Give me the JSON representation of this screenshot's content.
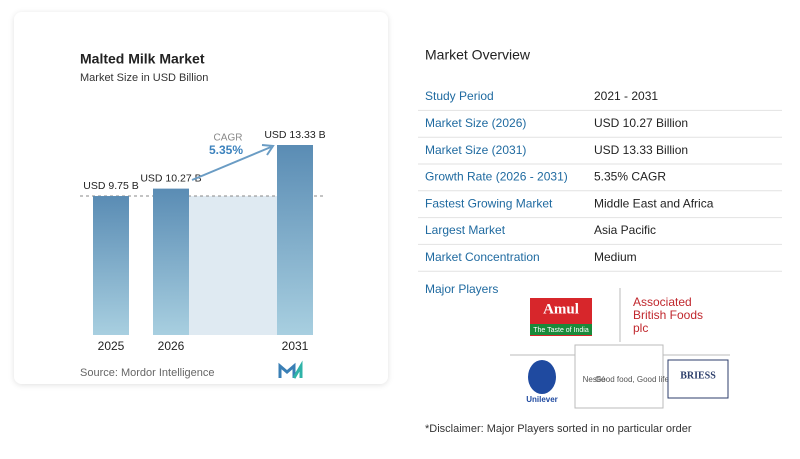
{
  "chart_data": {
    "type": "bar",
    "title": "Malted Milk Market",
    "subtitle": "Market Size in USD Billion",
    "categories": [
      "2025",
      "2026",
      "2031"
    ],
    "values": [
      9.75,
      10.27,
      13.33
    ],
    "value_labels": [
      "USD 9.75 B",
      "USD 10.27 B",
      "USD 13.33 B"
    ],
    "annotation": {
      "label": "CAGR",
      "value": "5.35%"
    },
    "source": "Source: Mordor Intelligence",
    "color": "#5b8fb7"
  },
  "overview": {
    "title": "Market Overview",
    "rows": [
      [
        "Study Period",
        "2021 - 2031"
      ],
      [
        "Market Size (2026)",
        "USD 10.27 Billion"
      ],
      [
        "Market Size (2031)",
        "USD 13.33 Billion"
      ],
      [
        "Growth Rate (2026 - 2031)",
        "5.35% CAGR"
      ],
      [
        "Fastest Growing Market",
        "Middle East and Africa"
      ],
      [
        "Largest Market",
        "Asia Pacific"
      ],
      [
        "Market Concentration",
        "Medium"
      ]
    ]
  },
  "major_players": {
    "title": "Major Players",
    "logos": [
      [
        "Amul",
        "The Taste of India"
      ],
      [
        "Associated",
        "British Foods",
        "plc"
      ],
      [
        "Unilever"
      ],
      [
        "Nestlé",
        "Good food, Good life"
      ],
      [
        "BRIESS"
      ]
    ]
  },
  "disclaimer": "*Disclaimer: Major Players sorted in no particular order"
}
